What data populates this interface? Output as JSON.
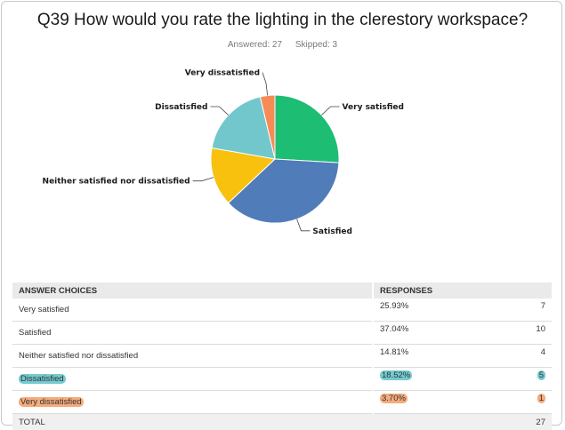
{
  "title": "Q39 How would you rate the lighting in the clerestory workspace?",
  "answered": "Answered: 27",
  "skipped": "Skipped: 3",
  "table": {
    "col_choices": "ANSWER CHOICES",
    "col_responses": "RESPONSES",
    "rows": [
      {
        "label": "Very satisfied",
        "pct": "25.93%",
        "count": "7",
        "highlight": ""
      },
      {
        "label": "Satisfied",
        "pct": "37.04%",
        "count": "10",
        "highlight": ""
      },
      {
        "label": "Neither satisfied nor dissatisfied",
        "pct": "14.81%",
        "count": "4",
        "highlight": ""
      },
      {
        "label": "Dissatisfied",
        "pct": "18.52%",
        "count": "5",
        "highlight": "#74cbd0"
      },
      {
        "label": "Very dissatisfied",
        "pct": "3.70%",
        "count": "1",
        "highlight": "#f5ab7c"
      }
    ],
    "total_label": "TOTAL",
    "total_count": "27"
  },
  "chart_data": {
    "type": "pie",
    "categories": [
      "Very satisfied",
      "Satisfied",
      "Neither satisfied nor dissatisfied",
      "Dissatisfied",
      "Very dissatisfied"
    ],
    "values": [
      7,
      10,
      4,
      5,
      1
    ],
    "percentages": [
      25.93,
      37.04,
      14.81,
      18.52,
      3.7
    ],
    "colors": [
      "#1dbd73",
      "#507cba",
      "#f7c10e",
      "#72c7cc",
      "#f68b56"
    ],
    "legend": "none"
  }
}
